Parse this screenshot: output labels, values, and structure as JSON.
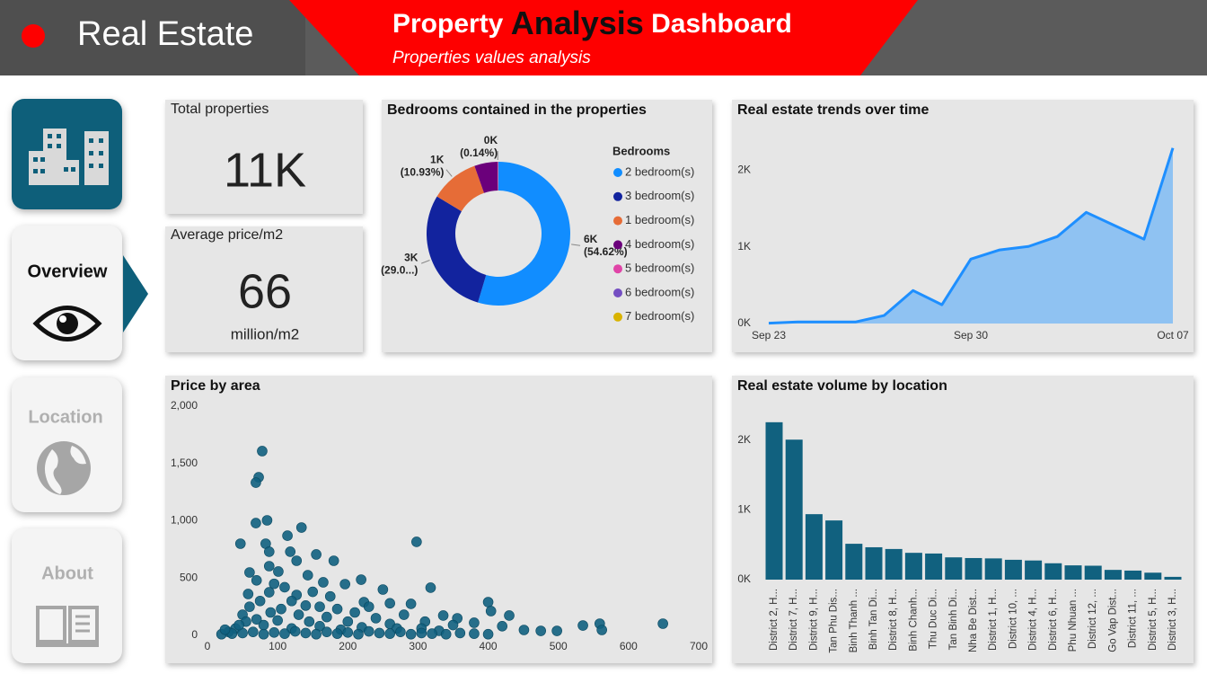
{
  "header": {
    "brand": "Real Estate",
    "title": [
      "Property",
      "Analysis",
      "Dashboard"
    ],
    "subtitle": "Properties values analysis"
  },
  "nav": [
    "Overview",
    "Location",
    "About"
  ],
  "cards": [
    {
      "label": "Total properties",
      "value": "11K"
    },
    {
      "label": "Average price/m2",
      "value": "66",
      "unit": "million/m2"
    }
  ],
  "chart_data": [
    {
      "type": "pie",
      "title": "Bedrooms contained in the properties",
      "legend_title": "Bedrooms",
      "legend": "right",
      "categories": [
        "2 bedroom(s)",
        "3 bedroom(s)",
        "1 bedroom(s)",
        "4 bedroom(s)",
        "5 bedroom(s)",
        "6 bedroom(s)",
        "7 bedroom(s)"
      ],
      "values": [
        6008,
        3195,
        1202,
        572,
        15,
        6,
        2
      ],
      "value_labels": [
        "6K",
        "3K",
        "1K",
        null,
        "0K",
        null,
        null
      ],
      "percent_labels": [
        "(54.62%)",
        "(29.0...)",
        "(10.93%)",
        null,
        "(0.14%)",
        null,
        null
      ],
      "colors": [
        "#118dff",
        "#12239e",
        "#e66c37",
        "#6b007b",
        "#e044a7",
        "#744ec2",
        "#d9b300"
      ]
    },
    {
      "type": "line",
      "title": "Real estate trends over time",
      "area": true,
      "categories": [
        "Sep 23",
        null,
        null,
        null,
        null,
        null,
        null,
        "Sep 30",
        null,
        null,
        null,
        null,
        null,
        null,
        "Oct 07"
      ],
      "values": [
        5,
        20,
        20,
        20,
        105,
        430,
        245,
        840,
        960,
        1005,
        1135,
        1450,
        1275,
        1100,
        2290
      ],
      "color": "#1e8fff",
      "fill": "#8fc2f2",
      "ylim": [
        0,
        2450
      ],
      "yticks": [
        {
          "value": 0,
          "label": "0K"
        },
        {
          "value": 1000,
          "label": "1K"
        },
        {
          "value": 2000,
          "label": "2K"
        }
      ]
    },
    {
      "type": "scatter",
      "title": "Price by area",
      "color": "#11617f",
      "x": [
        78,
        73,
        69,
        85,
        69,
        134,
        114,
        298,
        47,
        83,
        88,
        118,
        155,
        180,
        127,
        60,
        88,
        101,
        219,
        143,
        318,
        250,
        400,
        290,
        58,
        88,
        127,
        165,
        196,
        223,
        404,
        336,
        356,
        430,
        475,
        498,
        535,
        559,
        649,
        451,
        562,
        70,
        95,
        110,
        75,
        120,
        140,
        105,
        160,
        185,
        90,
        130,
        210,
        240,
        170,
        60,
        50,
        100,
        145,
        200,
        260,
        280,
        310,
        350,
        380,
        420,
        305,
        330,
        270,
        220,
        190,
        160,
        120,
        80,
        55,
        40,
        30,
        20,
        35,
        50,
        65,
        80,
        95,
        110,
        125,
        140,
        155,
        170,
        185,
        200,
        215,
        230,
        245,
        260,
        275,
        290,
        305,
        320,
        340,
        360,
        380,
        400,
        25,
        45,
        70,
        150,
        175,
        230,
        260
      ],
      "values": [
        1608,
        1380,
        1333,
        1004,
        980,
        941,
        870,
        816,
        800,
        800,
        730,
        730,
        706,
        651,
        651,
        549,
        604,
        557,
        486,
        525,
        416,
        400,
        290,
        275,
        361,
        376,
        353,
        463,
        447,
        290,
        212,
        173,
        149,
        173,
        39,
        39,
        86,
        102,
        102,
        47,
        47,
        480,
        450,
        420,
        300,
        300,
        260,
        230,
        250,
        230,
        200,
        180,
        200,
        150,
        160,
        250,
        180,
        130,
        120,
        120,
        100,
        180,
        120,
        90,
        110,
        80,
        60,
        40,
        60,
        70,
        50,
        80,
        60,
        90,
        120,
        60,
        30,
        10,
        15,
        20,
        30,
        10,
        25,
        15,
        35,
        20,
        10,
        30,
        15,
        25,
        10,
        35,
        20,
        15,
        30,
        10,
        20,
        15,
        10,
        20,
        15,
        10,
        50,
        90,
        140,
        380,
        340,
        250,
        280
      ],
      "xlim": [
        0,
        700
      ],
      "xticks": [
        0,
        100,
        200,
        300,
        400,
        500,
        600,
        700
      ],
      "ylim": [
        0,
        2000
      ],
      "yticks": [
        0,
        500,
        {
          "value": 1000,
          "label": "1,000"
        },
        {
          "value": 1500,
          "label": "1,500"
        },
        {
          "value": 2000,
          "label": "2,000"
        }
      ]
    },
    {
      "type": "bar",
      "title": "Real estate volume by location",
      "color": "#11617f",
      "categories": [
        "District 2, H...",
        "District 7, H...",
        "District 9, H...",
        "Tan Phu Dis...",
        "Binh Thanh ...",
        "Binh Tan Di...",
        "District 8, H...",
        "Binh Chanh...",
        "Thu Duc Di...",
        "Tan Binh Di...",
        "Nha Be Dist...",
        "District 1, H...",
        "District 10, ...",
        "District 4, H...",
        "District 6, H...",
        "Phu Nhuan ...",
        "District 12, ...",
        "Go Vap Dist...",
        "District 11, ...",
        "District 5, H...",
        "District 3, H..."
      ],
      "values": [
        2260,
        2010,
        940,
        850,
        515,
        465,
        440,
        385,
        375,
        320,
        310,
        305,
        285,
        275,
        235,
        205,
        200,
        140,
        130,
        100,
        40
      ],
      "ylim": [
        0,
        2400
      ],
      "yticks": [
        {
          "value": 0,
          "label": "0K"
        },
        {
          "value": 1000,
          "label": "1K"
        },
        {
          "value": 2000,
          "label": "2K"
        }
      ]
    }
  ]
}
